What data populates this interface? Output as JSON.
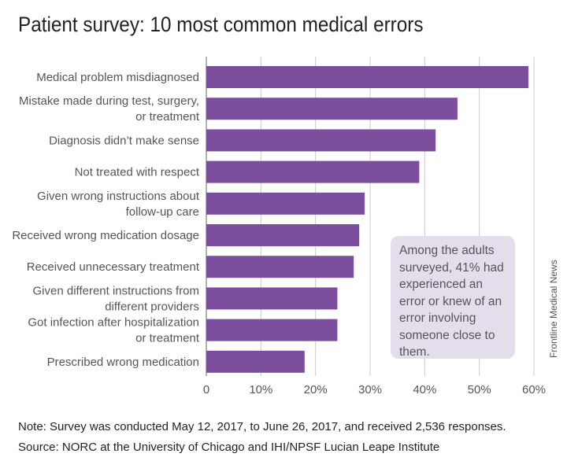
{
  "title": "Patient survey: 10 most common medical errors",
  "chart_data": {
    "type": "bar",
    "orientation": "horizontal",
    "title": "Patient survey: 10 most common medical errors",
    "categories": [
      [
        "Medical problem misdiagnosed"
      ],
      [
        "Mistake made during test, surgery,",
        "or treatment"
      ],
      [
        "Diagnosis didn’t make sense"
      ],
      [
        "Not treated with respect"
      ],
      [
        "Given wrong instructions about",
        "follow-up care"
      ],
      [
        "Received wrong medication dosage"
      ],
      [
        "Received unnecessary treatment"
      ],
      [
        "Given different instructions from",
        "different providers"
      ],
      [
        "Got infection after hospitalization",
        "or treatment"
      ],
      [
        "Prescribed wrong medication"
      ]
    ],
    "values": [
      59,
      46,
      42,
      39,
      29,
      28,
      27,
      24,
      24,
      18
    ],
    "xlim": [
      0,
      60
    ],
    "ticks": [
      0,
      10,
      20,
      30,
      40,
      50,
      60
    ],
    "tick_labels": [
      "0",
      "10%",
      "20%",
      "30%",
      "40%",
      "50%",
      "60%"
    ],
    "grid": true,
    "bar_color": "#7b4f9d",
    "grid_color": "#cccccc",
    "xlabel": "",
    "ylabel": ""
  },
  "annotation": "Among the adults surveyed, 41% had experienced an error or knew of an error involving someone close to them.",
  "credit": "Frontline Medical News",
  "note": {
    "label": "Note:",
    "text": " Survey was conducted May 12, 2017, to June 26, 2017, and received 2,536 responses."
  },
  "source": {
    "label": "Source:",
    "text": " NORC at the University of Chicago and IHI/NPSF Lucian Leape Institute"
  }
}
